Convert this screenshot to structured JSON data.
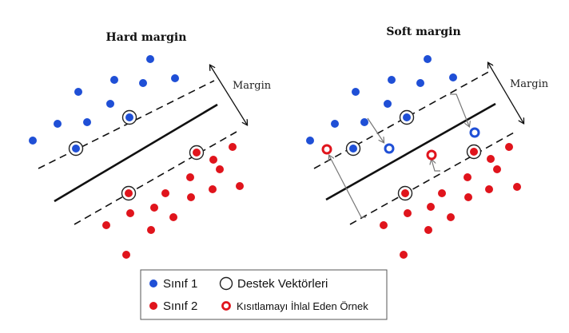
{
  "colors": {
    "class1": "#1f4fd6",
    "class2": "#e0141c",
    "line": "#111111",
    "arrow": "#777777"
  },
  "panels": [
    {
      "title": "Hard margin",
      "margin_label": "Margin"
    },
    {
      "title": "Soft margin",
      "margin_label": "Margin"
    }
  ],
  "legend": {
    "class1": "Sınıf 1",
    "class2": "Sınıf 2",
    "support_vectors": "Destek Vektörleri",
    "violating_sample": "Kısıtlamayı İhlal Eden Örnek"
  }
}
